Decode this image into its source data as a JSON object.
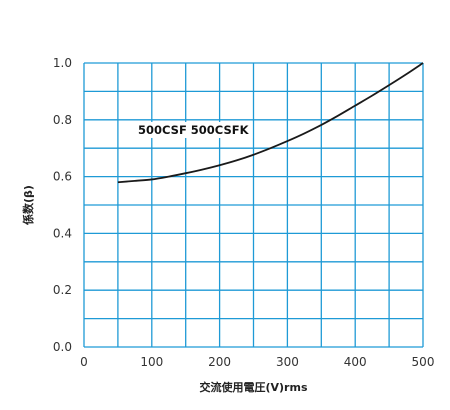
{
  "chart_data": {
    "type": "line",
    "title": "",
    "xlabel": "交流使用電圧(V)rms",
    "ylabel": "係数(β)",
    "xlim": [
      0,
      500
    ],
    "ylim": [
      0.0,
      1.0
    ],
    "x_ticks": [
      "0",
      "100",
      "200",
      "300",
      "400",
      "500"
    ],
    "y_ticks": [
      "0.0",
      "0.2",
      "0.4",
      "0.6",
      "0.8",
      "1.0"
    ],
    "grid": true,
    "colors": {
      "grid": "#1e9ad6",
      "line": "#1a1a1a"
    },
    "series": [
      {
        "name": "500CSF 500CSFK",
        "x": [
          50,
          75,
          100,
          125,
          150,
          175,
          200,
          225,
          250,
          275,
          300,
          325,
          350,
          375,
          400,
          425,
          450,
          475,
          500
        ],
        "y": [
          0.58,
          0.585,
          0.59,
          0.6,
          0.612,
          0.625,
          0.64,
          0.657,
          0.677,
          0.7,
          0.725,
          0.752,
          0.782,
          0.815,
          0.85,
          0.885,
          0.922,
          0.96,
          1.0
        ]
      }
    ]
  }
}
